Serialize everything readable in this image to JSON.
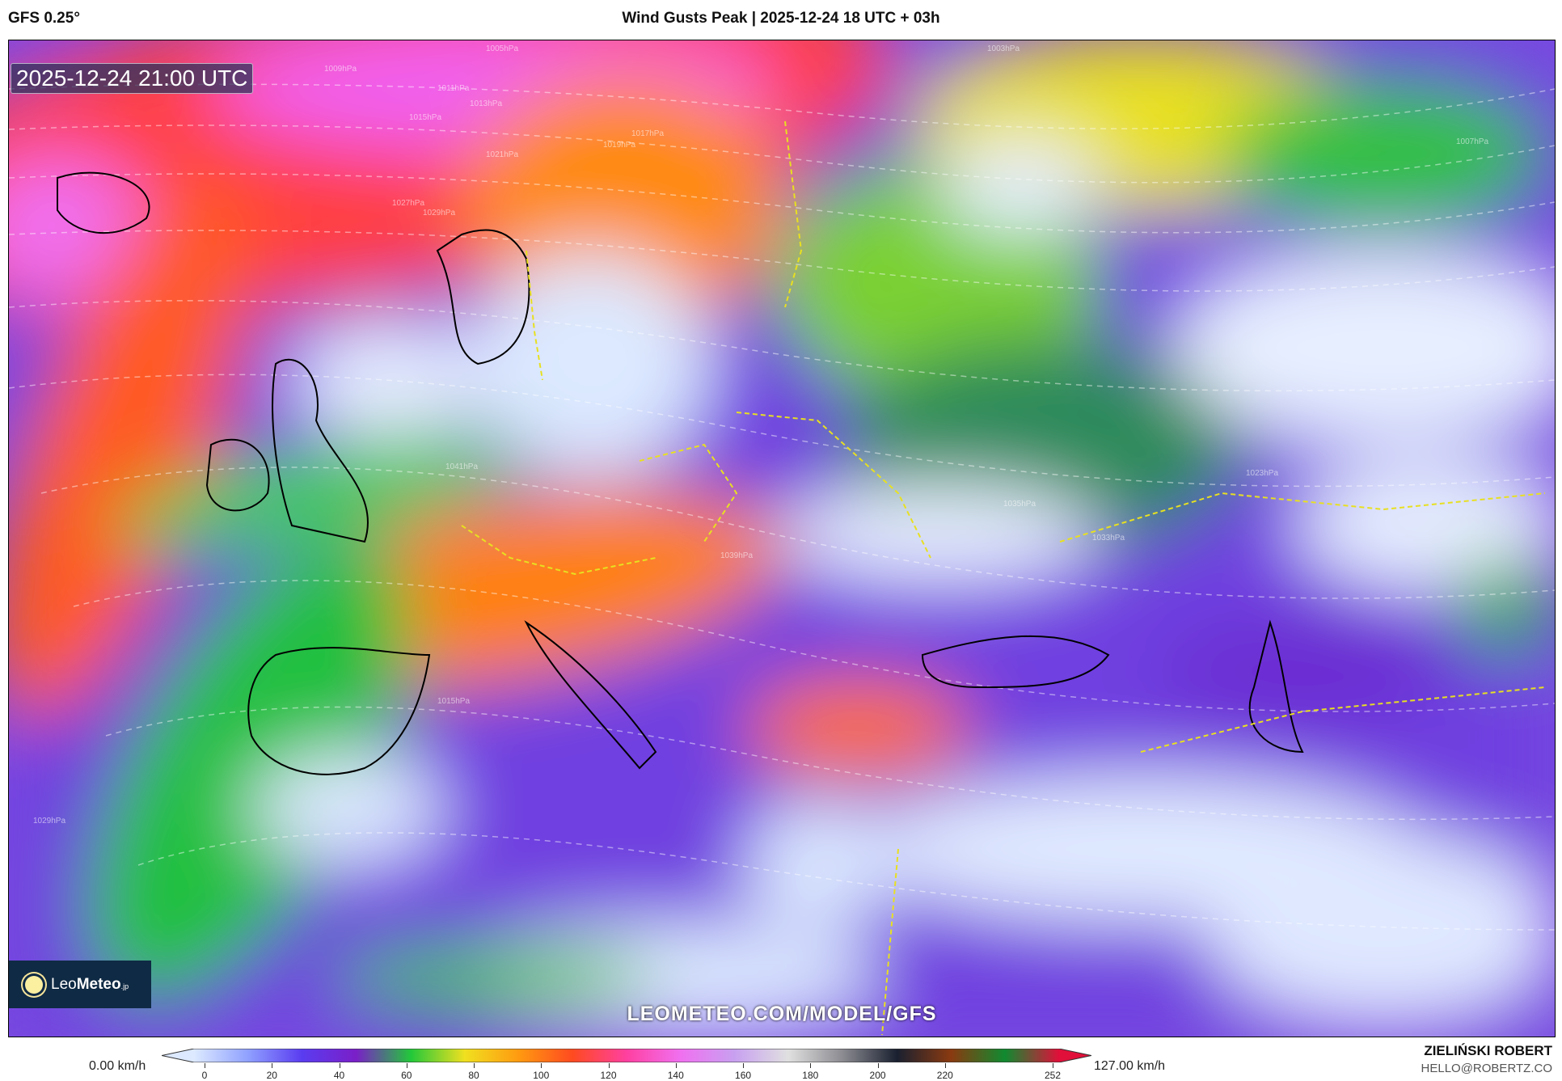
{
  "header": {
    "model": "GFS 0.25°",
    "title": "Wind Gusts Peak | 2025-12-24 18 UTC + 03h"
  },
  "map": {
    "valid_time": "2025-12-24 21:00 UTC",
    "url": "LEOMETEO.COM/MODEL/GFS",
    "logo": {
      "prefix": "Leo",
      "bold": "Meteo",
      "suffix": ".jp"
    },
    "isobar_labels": [
      "1003hPa",
      "1005hPa",
      "1009hPa",
      "1011hPa",
      "1013hPa",
      "1015hPa",
      "1017hPa",
      "1019hPa",
      "1021hPa",
      "1027hPa",
      "1029hPa",
      "1041hPa",
      "1039hPa",
      "1035hPa",
      "1033hPa",
      "1023hPa",
      "1015hPa",
      "1029hPa",
      "1007hPa"
    ]
  },
  "colorbar": {
    "min_label": "0.00 km/h",
    "max_label": "127.00 km/h",
    "ticks": [
      "0",
      "20",
      "40",
      "60",
      "80",
      "100",
      "120",
      "140",
      "160",
      "180",
      "200",
      "220",
      "252"
    ],
    "colors": [
      "#dce9ff",
      "#8fa0ff",
      "#5a3cf0",
      "#7a1fc8",
      "#22c83a",
      "#f0e020",
      "#ff9a10",
      "#ff4a20",
      "#ff40a0",
      "#f070f0",
      "#c8a0f0",
      "#e0e0e0",
      "#8a8a90",
      "#1a2030",
      "#8a3a10",
      "#108a30",
      "#e0103a"
    ]
  },
  "footer": {
    "author": "ZIELIŃSKI ROBERT",
    "email": "HELLO@ROBERTZ.CO"
  }
}
